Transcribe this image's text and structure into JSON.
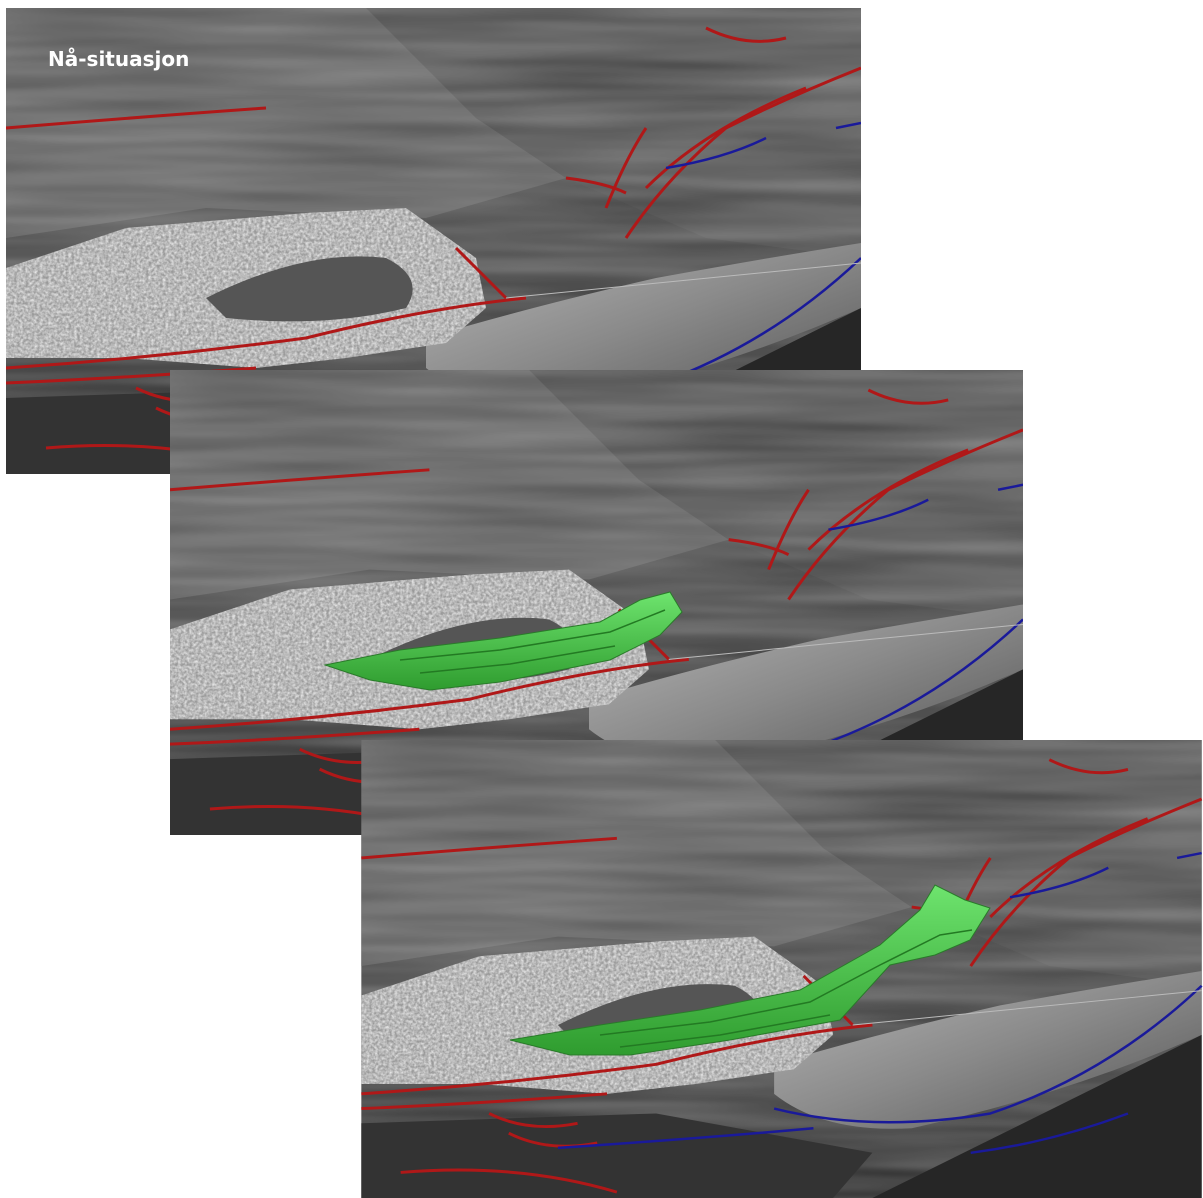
{
  "panels": [
    {
      "label": "Nå-situasjon"
    }
  ]
}
